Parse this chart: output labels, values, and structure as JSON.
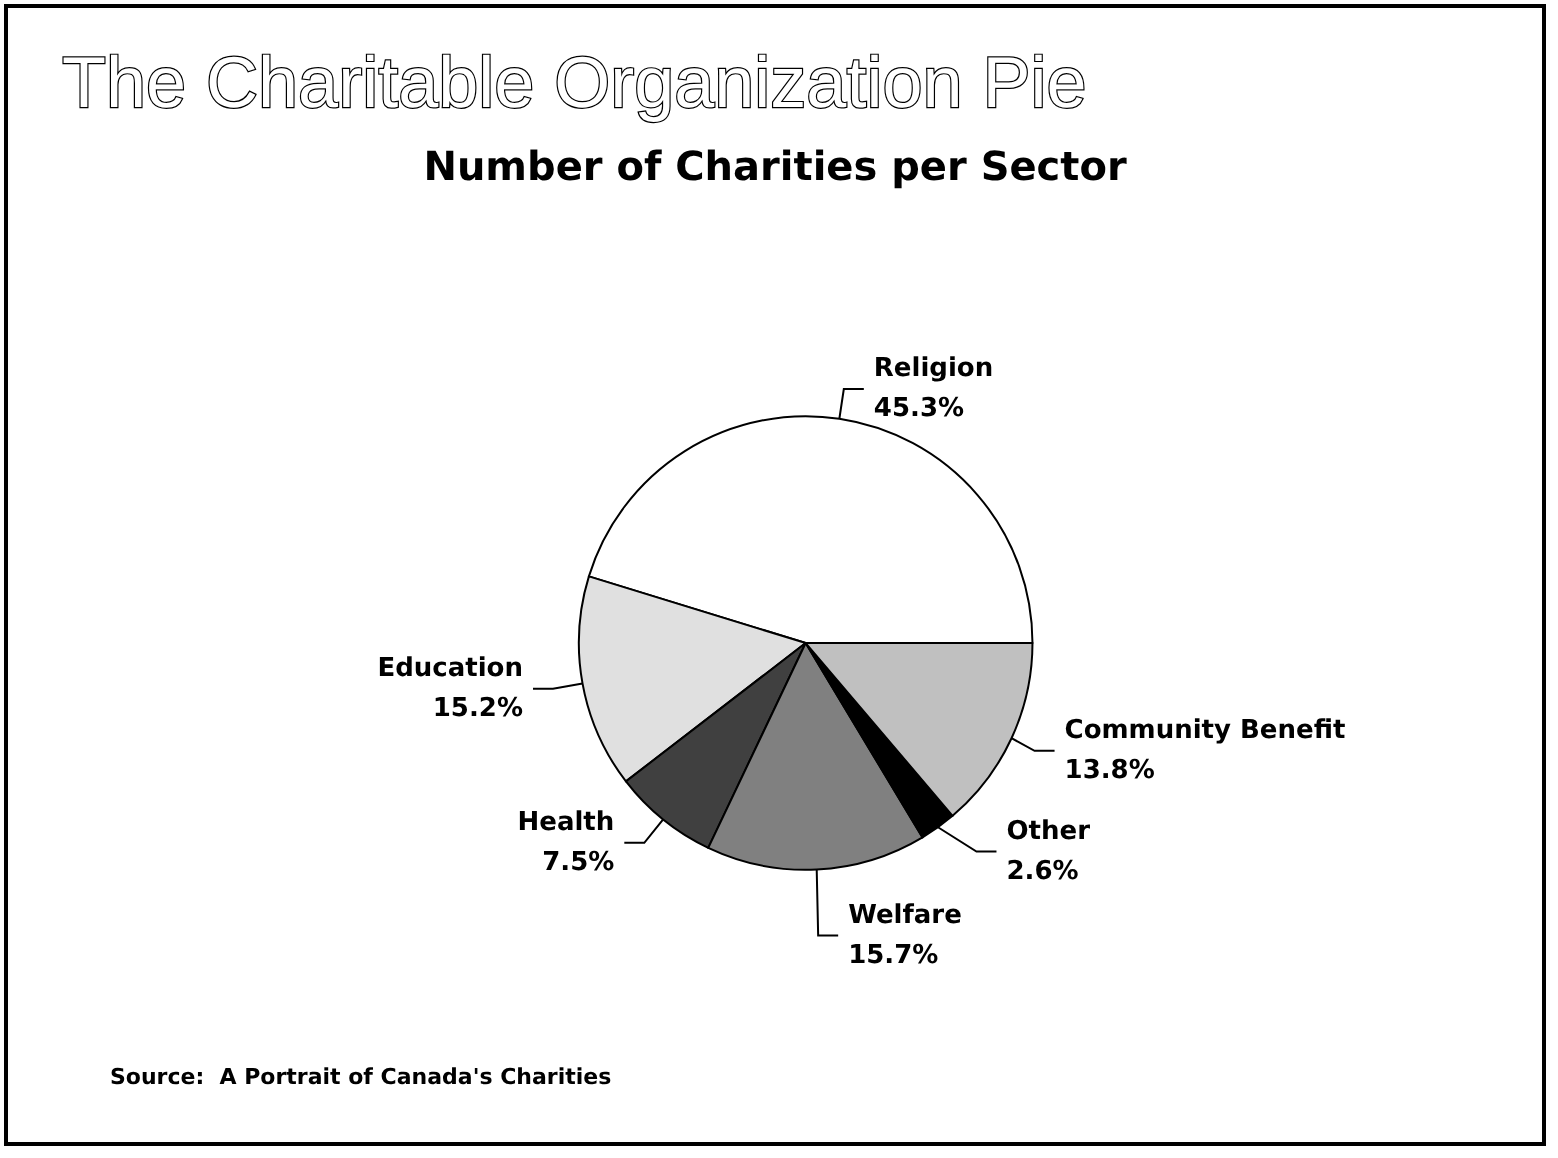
{
  "chart_data": {
    "type": "pie",
    "title": "The Charitable Organization Pie",
    "subtitle": "Number of Charities per Sector",
    "categories": [
      "Religion",
      "Education",
      "Health",
      "Welfare",
      "Other",
      "Community Benefit"
    ],
    "values": [
      45.3,
      15.2,
      7.5,
      15.7,
      2.6,
      13.8
    ],
    "value_labels": [
      "45.3%",
      "15.2%",
      "7.5%",
      "15.7%",
      "2.6%",
      "13.8%"
    ],
    "colors": [
      "#ffffff",
      "#e0e0e0",
      "#404040",
      "#808080",
      "#000000",
      "#c0c0c0"
    ],
    "annotations": [
      "Source:  A Portrait of Canada's Charities"
    ],
    "legend": false
  }
}
